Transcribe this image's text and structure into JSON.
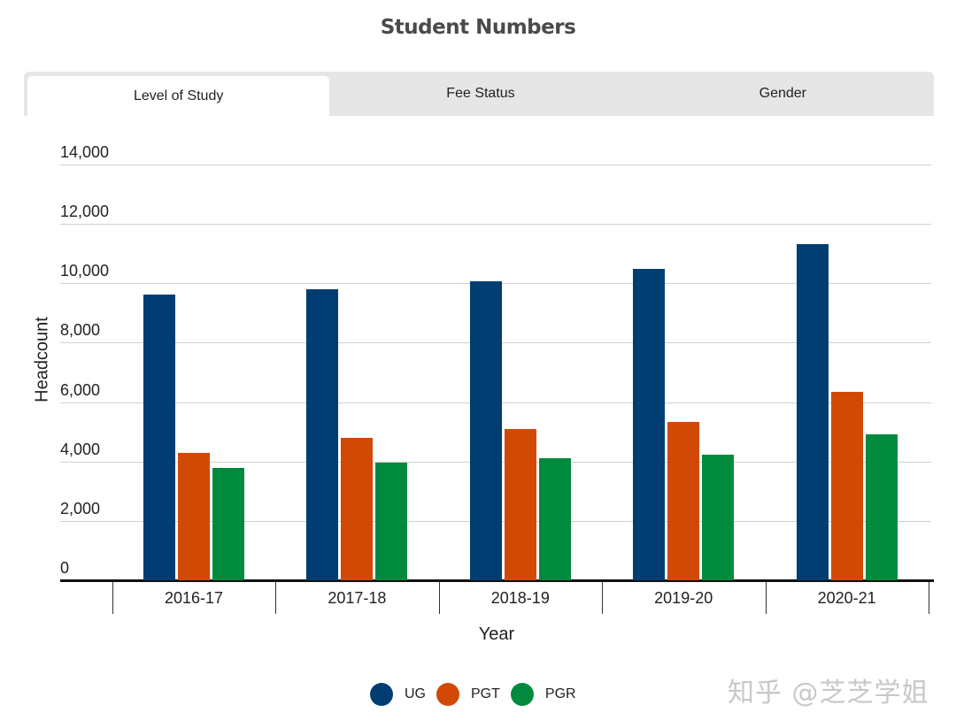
{
  "title": "Student Numbers",
  "tabs": [
    {
      "label": "Level of Study",
      "active": true
    },
    {
      "label": "Fee Status",
      "active": false
    },
    {
      "label": "Gender",
      "active": false
    }
  ],
  "watermark": "知乎 @芝芝学姐",
  "colors": {
    "UG": "#003d73",
    "PGT": "#d14905",
    "PGR": "#008a3e"
  },
  "chart_data": {
    "type": "bar",
    "title": "Student Numbers",
    "xlabel": "Year",
    "ylabel": "Headcount",
    "ylim": [
      0,
      14000
    ],
    "yticks": [
      "0",
      "2,000",
      "4,000",
      "6,000",
      "8,000",
      "10,000",
      "12,000",
      "14,000"
    ],
    "categories": [
      "2016-17",
      "2017-18",
      "2018-19",
      "2019-20",
      "2020-21"
    ],
    "series": [
      {
        "name": "UG",
        "values": [
          9620,
          9800,
          10070,
          10490,
          11320
        ]
      },
      {
        "name": "PGT",
        "values": [
          4290,
          4800,
          5090,
          5330,
          6340
        ]
      },
      {
        "name": "PGR",
        "values": [
          3780,
          3960,
          4110,
          4230,
          4910
        ]
      }
    ],
    "legend_position": "bottom",
    "grid": true
  }
}
